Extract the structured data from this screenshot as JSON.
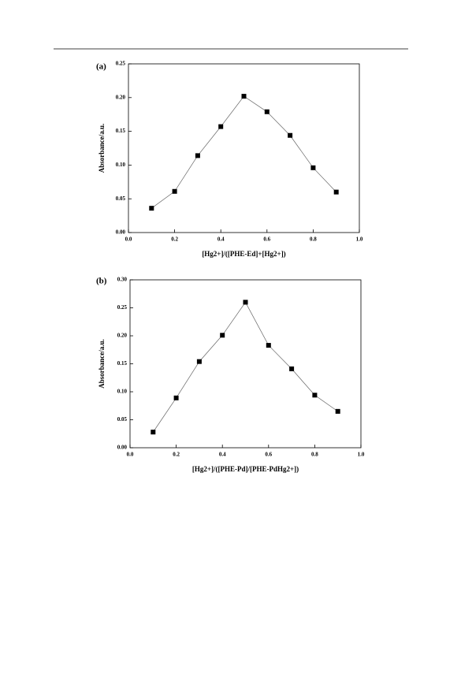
{
  "chart_data": [
    {
      "type": "line",
      "panel_label": "(a)",
      "ylabel": "Absorbance/a.u.",
      "xlabel": "[Hg2+]/([PHE-Ed]+[Hg2+])",
      "x": [
        0.1,
        0.2,
        0.3,
        0.4,
        0.5,
        0.6,
        0.7,
        0.8,
        0.9
      ],
      "series": [
        {
          "color": "#000000",
          "values": [
            0.036,
            0.061,
            0.114,
            0.157,
            0.202,
            0.179,
            0.144,
            0.096,
            0.06
          ]
        }
      ],
      "xlim": [
        0,
        1
      ],
      "xticks": [
        {
          "value": 0,
          "label": "0.0"
        },
        0.2,
        0.4,
        0.6,
        0.8,
        {
          "value": 1,
          "label": "1.0"
        }
      ],
      "ylim": [
        0,
        0.25
      ],
      "yticks": [
        {
          "value": 0,
          "label": "0.00"
        },
        0.05,
        {
          "value": 0.1,
          "label": "0.10"
        },
        0.15,
        {
          "value": 0.2,
          "label": "0.20"
        },
        0.25
      ]
    },
    {
      "type": "line",
      "panel_label": "(b)",
      "ylabel": "Absorbance/a.u.",
      "xlabel": "[Hg2+]/([PHE-Pd]/[PHE-PdHg2+])",
      "x": [
        0.1,
        0.2,
        0.3,
        0.4,
        0.5,
        0.6,
        0.7,
        0.8,
        0.9
      ],
      "series": [
        {
          "color": "#000000",
          "values": [
            0.028,
            0.089,
            0.154,
            0.201,
            0.26,
            0.183,
            0.141,
            0.094,
            0.065
          ]
        }
      ],
      "xlim": [
        0,
        1
      ],
      "xticks": [
        {
          "value": 0,
          "label": "0.0"
        },
        0.2,
        0.4,
        0.6,
        0.8,
        {
          "value": 1,
          "label": "1.0"
        }
      ],
      "ylim": [
        0,
        0.3
      ],
      "yticks": [
        {
          "value": 0,
          "label": "0.00"
        },
        0.05,
        {
          "value": 0.1,
          "label": "0.10"
        },
        0.15,
        {
          "value": 0.2,
          "label": "0.20"
        },
        0.25,
        {
          "value": 0.3,
          "label": "0.30"
        }
      ]
    }
  ]
}
